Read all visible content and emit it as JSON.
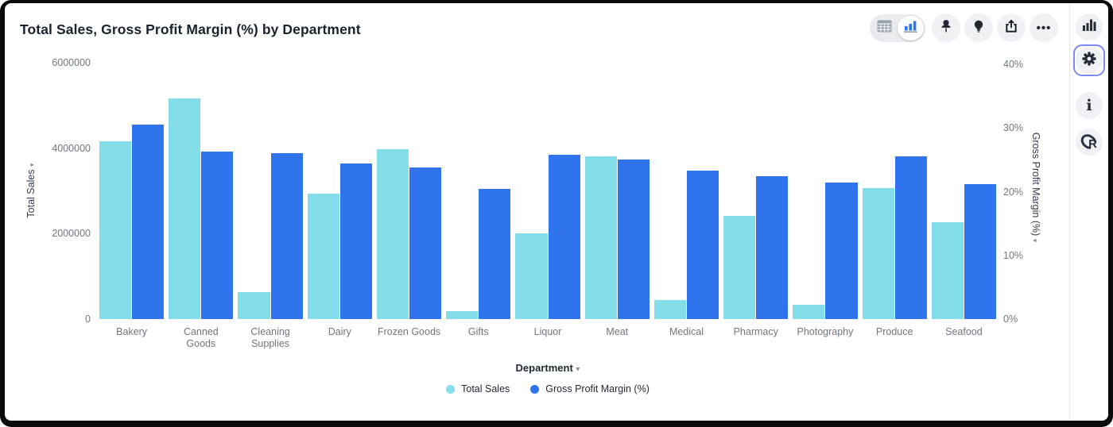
{
  "header": {
    "title": "Total Sales, Gross Profit Margin (%) by Department"
  },
  "icons": {
    "ellipsis": "•••",
    "sort_arrow": "▾",
    "dropdown_arrow": "▾",
    "info": "i",
    "r_logo": "R"
  },
  "chart_data": {
    "type": "bar",
    "title": "Total Sales, Gross Profit Margin (%) by Department",
    "categories": [
      "Bakery",
      "Canned Goods",
      "Cleaning Supplies",
      "Dairy",
      "Frozen Goods",
      "Gifts",
      "Liquor",
      "Meat",
      "Medical",
      "Pharmacy",
      "Photography",
      "Produce",
      "Seafood"
    ],
    "series": [
      {
        "name": "Total Sales",
        "axis": "left",
        "color": "#83DEE9",
        "values": [
          4160000,
          5160000,
          630000,
          2940000,
          3980000,
          190000,
          2000000,
          3810000,
          450000,
          2420000,
          330000,
          3060000,
          2270000
        ]
      },
      {
        "name": "Gross Profit Margin (%)",
        "axis": "right",
        "color": "#2F74EC",
        "values": [
          30.3,
          26.1,
          25.9,
          24.3,
          23.6,
          20.3,
          25.6,
          24.9,
          23.1,
          22.3,
          21.3,
          25.4,
          21.1
        ]
      }
    ],
    "xlabel": "Department",
    "left_axis": {
      "label": "Total Sales",
      "min": 0,
      "max": 6000000,
      "ticks": [
        "6000000",
        "4000000",
        "2000000",
        "0"
      ]
    },
    "right_axis": {
      "label": "Gross Profit Margin (%)",
      "min": 0,
      "max": 40,
      "ticks": [
        "40%",
        "30%",
        "20%",
        "10%",
        "0%"
      ]
    },
    "legend": {
      "position": "bottom",
      "entries": [
        "Total Sales",
        "Gross Profit Margin (%)"
      ]
    },
    "grid": false
  }
}
